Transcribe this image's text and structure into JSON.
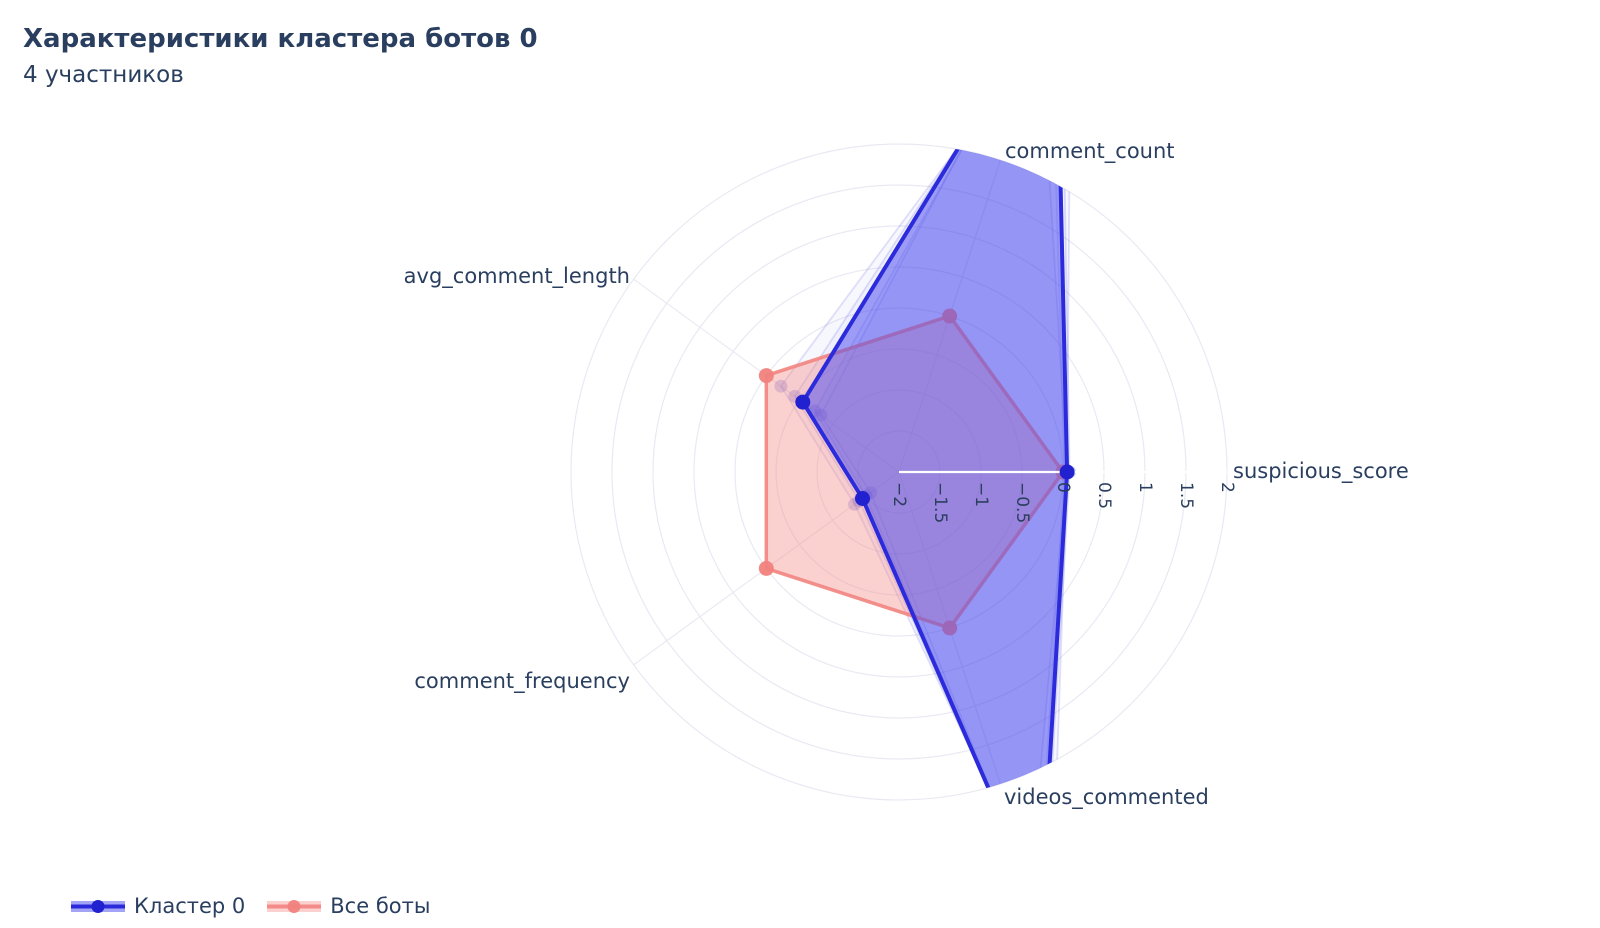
{
  "chart_data": {
    "type": "radar",
    "title": "Характеристики кластера ботов 0",
    "subtitle": "4 участников",
    "categories": [
      "suspicious_score",
      "comment_count",
      "avg_comment_length",
      "comment_frequency",
      "videos_commented"
    ],
    "angles_deg": [
      0,
      72,
      144,
      216,
      288
    ],
    "radial_range": [
      -2,
      2
    ],
    "radial_ticks": [
      -2,
      -1.5,
      -1,
      -0.5,
      0,
      0.5,
      1,
      1.5,
      2
    ],
    "grid": true,
    "legend_position": "bottom-left",
    "series": [
      {
        "name": "Кластер 0",
        "values": [
          0.05,
          4.2,
          -0.55,
          -1.45,
          3.6
        ],
        "clipped_at_range_max": [
          "comment_count",
          "videos_commented"
        ],
        "line_color": "#2b2bdb",
        "fill_color": "rgba(73,73,240,0.5)",
        "marker_color": "#2121cf",
        "line_width": 4
      },
      {
        "name": "Все боты",
        "values": [
          0,
          0,
          0,
          0,
          0
        ],
        "clipped_at_range_max": [],
        "line_color": "rgba(242,132,127,0.9)",
        "fill_color": "rgba(245,145,140,0.42)",
        "marker_color": "rgba(241,130,125,0.95)",
        "line_width": 3.5
      }
    ],
    "member_traces": {
      "note": "4 faint semi-transparent individual member traces, values estimated from visible faint markers",
      "estimated": true,
      "line_color": "rgba(55,55,215,0.15)",
      "fill_color": "rgba(90,90,240,0.05)",
      "marker_color": "rgba(75,75,220,0.28)",
      "values": [
        [
          0.05,
          3.6,
          -0.22,
          -1.33,
          3.2
        ],
        [
          0.02,
          4.0,
          -0.43,
          -1.4,
          3.5
        ],
        [
          0.08,
          4.4,
          -0.73,
          -1.5,
          3.7
        ],
        [
          0.05,
          4.8,
          -0.82,
          -1.57,
          4.0
        ]
      ]
    },
    "colors": {
      "text": "#2a3f5f",
      "grid": "#e9e9f3",
      "radial_axis_line": "#ffffff",
      "background": "#ffffff"
    }
  },
  "legend": {
    "items": [
      {
        "label": "Кластер 0",
        "series_index": 0
      },
      {
        "label": "Все боты",
        "series_index": 1
      }
    ]
  }
}
